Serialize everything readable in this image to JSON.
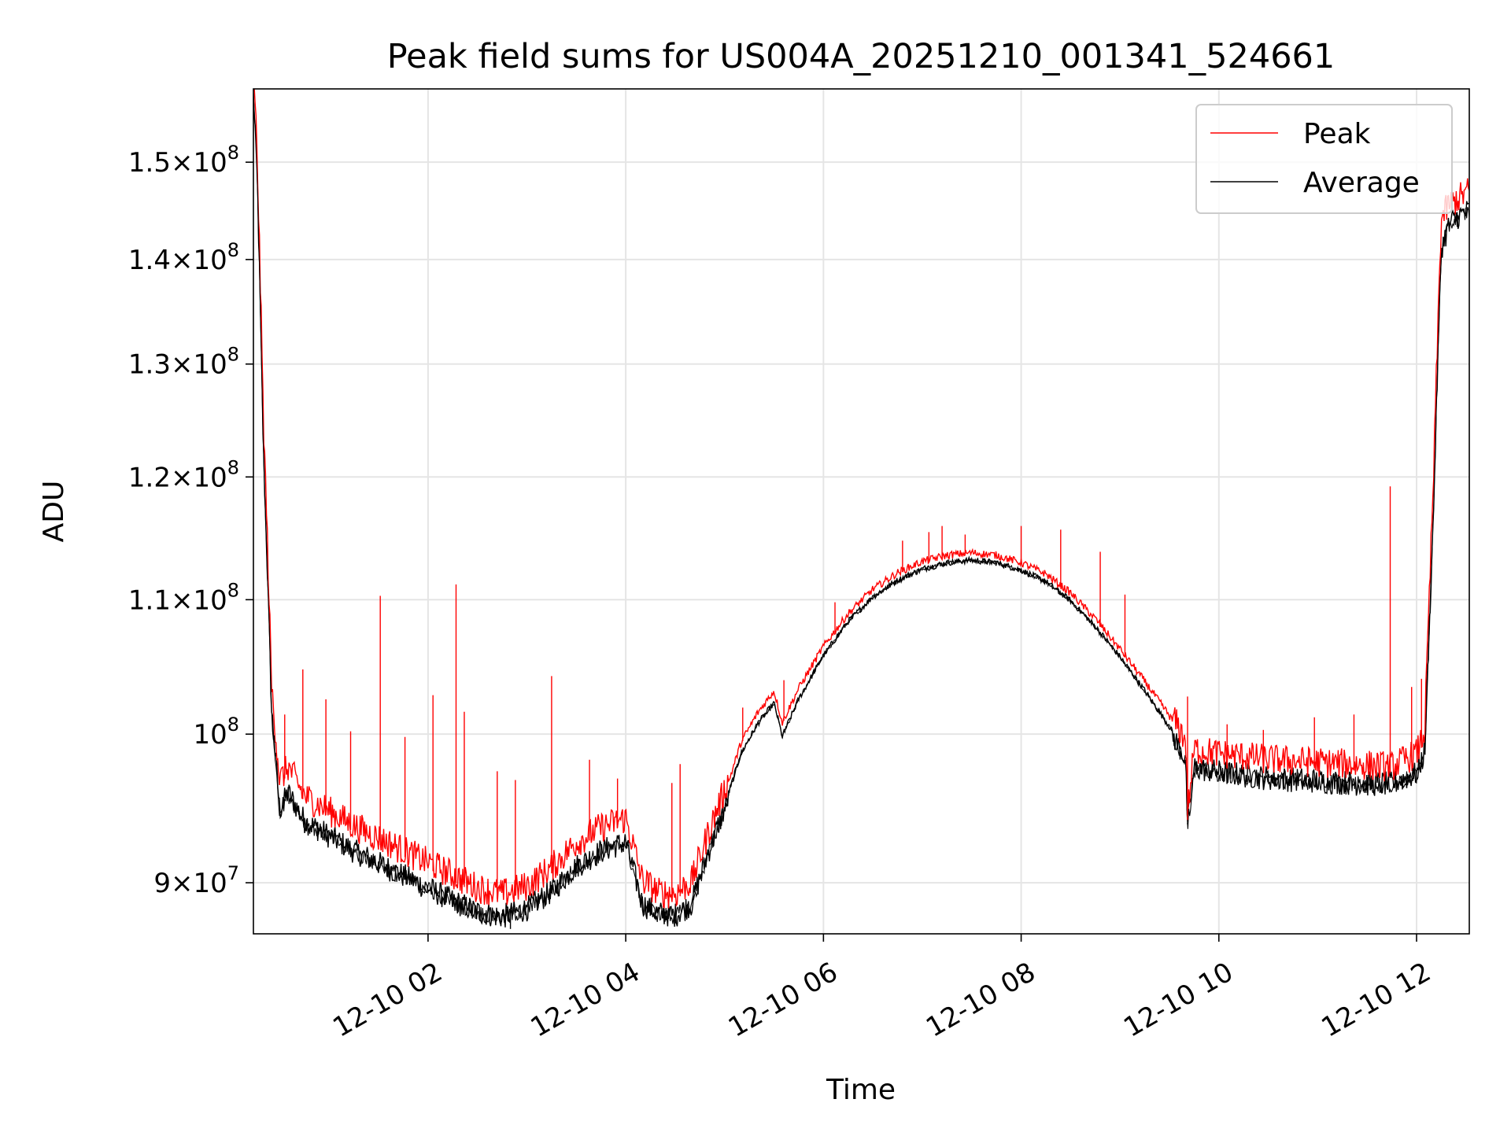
{
  "chart_data": {
    "type": "line",
    "title": "Peak field sums for US004A_20251210_001341_524661",
    "xlabel": "Time",
    "ylabel": "ADU",
    "y_scale": "log",
    "ylim": [
      86800000,
      158000000
    ],
    "xlim": [
      "2025-12-10 00:14",
      "2025-12-10 12:32"
    ],
    "grid": true,
    "legend_position": "top-right",
    "x_ticks": [
      {
        "t": "2025-12-10 02:00",
        "label": "12-10 02"
      },
      {
        "t": "2025-12-10 04:00",
        "label": "12-10 04"
      },
      {
        "t": "2025-12-10 06:00",
        "label": "12-10 06"
      },
      {
        "t": "2025-12-10 08:00",
        "label": "12-10 08"
      },
      {
        "t": "2025-12-10 10:00",
        "label": "12-10 10"
      },
      {
        "t": "2025-12-10 12:00",
        "label": "12-10 12"
      }
    ],
    "y_ticks": [
      {
        "value": 90000000,
        "label_mantissa": "9",
        "label_exp": "7"
      },
      {
        "value": 100000000,
        "label_mantissa": "",
        "label_exp": "8"
      },
      {
        "value": 110000000,
        "label_mantissa": "1.1",
        "label_exp": "8"
      },
      {
        "value": 120000000,
        "label_mantissa": "1.2",
        "label_exp": "8"
      },
      {
        "value": 130000000,
        "label_mantissa": "1.3",
        "label_exp": "8"
      },
      {
        "value": 140000000,
        "label_mantissa": "1.4",
        "label_exp": "8"
      },
      {
        "value": 150000000,
        "label_mantissa": "1.5",
        "label_exp": "8"
      }
    ],
    "series": [
      {
        "name": "Peak",
        "color": "#ff0000",
        "x": [
          "2025-12-10 00:14",
          "2025-12-10 00:16",
          "2025-12-10 00:20",
          "2025-12-10 00:25",
          "2025-12-10 00:30",
          "2025-12-10 00:35",
          "2025-12-10 00:45",
          "2025-12-10 01:00",
          "2025-12-10 01:15",
          "2025-12-10 01:30",
          "2025-12-10 01:45",
          "2025-12-10 02:00",
          "2025-12-10 02:15",
          "2025-12-10 02:30",
          "2025-12-10 02:45",
          "2025-12-10 03:00",
          "2025-12-10 03:15",
          "2025-12-10 03:30",
          "2025-12-10 03:45",
          "2025-12-10 04:00",
          "2025-12-10 04:10",
          "2025-12-10 04:20",
          "2025-12-10 04:30",
          "2025-12-10 04:40",
          "2025-12-10 04:50",
          "2025-12-10 05:00",
          "2025-12-10 05:10",
          "2025-12-10 05:20",
          "2025-12-10 05:30",
          "2025-12-10 05:35",
          "2025-12-10 05:45",
          "2025-12-10 06:00",
          "2025-12-10 06:15",
          "2025-12-10 06:30",
          "2025-12-10 06:45",
          "2025-12-10 07:00",
          "2025-12-10 07:15",
          "2025-12-10 07:30",
          "2025-12-10 07:45",
          "2025-12-10 08:00",
          "2025-12-10 08:15",
          "2025-12-10 08:30",
          "2025-12-10 08:45",
          "2025-12-10 09:00",
          "2025-12-10 09:15",
          "2025-12-10 09:30",
          "2025-12-10 09:40",
          "2025-12-10 09:41",
          "2025-12-10 09:45",
          "2025-12-10 10:00",
          "2025-12-10 10:15",
          "2025-12-10 10:30",
          "2025-12-10 10:45",
          "2025-12-10 11:00",
          "2025-12-10 11:15",
          "2025-12-10 11:30",
          "2025-12-10 11:45",
          "2025-12-10 12:00",
          "2025-12-10 12:05",
          "2025-12-10 12:10",
          "2025-12-10 12:15",
          "2025-12-10 12:20",
          "2025-12-10 12:25",
          "2025-12-10 12:32"
        ],
        "y": [
          158000000,
          152000000,
          125000000,
          103000000,
          96300000,
          97300000,
          95300000,
          94300000,
          93300000,
          92500000,
          91700000,
          90900000,
          90100000,
          89300000,
          88900000,
          89400000,
          90600000,
          92200000,
          93200000,
          93800000,
          89800000,
          89000000,
          88900000,
          89700000,
          92800000,
          95700000,
          99300000,
          101400000,
          103000000,
          100700000,
          103200000,
          106300000,
          108800000,
          110700000,
          112000000,
          112900000,
          113400000,
          113600000,
          113400000,
          112800000,
          111900000,
          110400000,
          108400000,
          106100000,
          103700000,
          101200000,
          99100000,
          94100000,
          98500000,
          98200000,
          98000000,
          97800000,
          97700000,
          97600000,
          97500000,
          97400000,
          97300000,
          98200000,
          99800000,
          118000000,
          143500000,
          145000000,
          145500000,
          146400000
        ]
      },
      {
        "name": "Average",
        "color": "#000000",
        "x": [
          "2025-12-10 00:14",
          "2025-12-10 00:16",
          "2025-12-10 00:20",
          "2025-12-10 00:25",
          "2025-12-10 00:30",
          "2025-12-10 00:35",
          "2025-12-10 00:45",
          "2025-12-10 01:00",
          "2025-12-10 01:15",
          "2025-12-10 01:30",
          "2025-12-10 01:45",
          "2025-12-10 02:00",
          "2025-12-10 02:15",
          "2025-12-10 02:30",
          "2025-12-10 02:45",
          "2025-12-10 03:00",
          "2025-12-10 03:15",
          "2025-12-10 03:30",
          "2025-12-10 03:45",
          "2025-12-10 04:00",
          "2025-12-10 04:10",
          "2025-12-10 04:20",
          "2025-12-10 04:30",
          "2025-12-10 04:40",
          "2025-12-10 04:50",
          "2025-12-10 05:00",
          "2025-12-10 05:10",
          "2025-12-10 05:20",
          "2025-12-10 05:30",
          "2025-12-10 05:35",
          "2025-12-10 05:45",
          "2025-12-10 06:00",
          "2025-12-10 06:15",
          "2025-12-10 06:30",
          "2025-12-10 06:45",
          "2025-12-10 07:00",
          "2025-12-10 07:15",
          "2025-12-10 07:30",
          "2025-12-10 07:45",
          "2025-12-10 08:00",
          "2025-12-10 08:15",
          "2025-12-10 08:30",
          "2025-12-10 08:45",
          "2025-12-10 09:00",
          "2025-12-10 09:15",
          "2025-12-10 09:30",
          "2025-12-10 09:40",
          "2025-12-10 09:41",
          "2025-12-10 09:45",
          "2025-12-10 10:00",
          "2025-12-10 10:15",
          "2025-12-10 10:30",
          "2025-12-10 10:45",
          "2025-12-10 11:00",
          "2025-12-10 11:15",
          "2025-12-10 11:30",
          "2025-12-10 11:45",
          "2025-12-10 12:00",
          "2025-12-10 12:05",
          "2025-12-10 12:10",
          "2025-12-10 12:15",
          "2025-12-10 12:20",
          "2025-12-10 12:25",
          "2025-12-10 12:32"
        ],
        "y": [
          157500000,
          151000000,
          123000000,
          102000000,
          95000000,
          96200000,
          94300000,
          93300000,
          92300000,
          91500000,
          90700000,
          89900000,
          89100000,
          88400000,
          88100000,
          88600000,
          89700000,
          91300000,
          92300000,
          92900000,
          88900000,
          88300000,
          88200000,
          88900000,
          92200000,
          95100000,
          98700000,
          100800000,
          102300000,
          99900000,
          102600000,
          105800000,
          108400000,
          110300000,
          111600000,
          112500000,
          113000000,
          113200000,
          113000000,
          112400000,
          111500000,
          110000000,
          108000000,
          105700000,
          103200000,
          100600000,
          98500000,
          93900000,
          97900000,
          97600000,
          97400000,
          97200000,
          97100000,
          97000000,
          96900000,
          96800000,
          96800000,
          97500000,
          99000000,
          116000000,
          141500000,
          144000000,
          144700000,
          145400000
        ]
      }
    ],
    "peak_spikes": [
      {
        "t": "2025-12-10 00:33",
        "y": 101400000
      },
      {
        "t": "2025-12-10 00:44",
        "y": 104700000
      },
      {
        "t": "2025-12-10 00:58",
        "y": 102500000
      },
      {
        "t": "2025-12-10 01:13",
        "y": 100200000
      },
      {
        "t": "2025-12-10 01:31",
        "y": 110300000
      },
      {
        "t": "2025-12-10 01:46",
        "y": 99800000
      },
      {
        "t": "2025-12-10 02:03",
        "y": 102800000
      },
      {
        "t": "2025-12-10 02:17",
        "y": 111200000
      },
      {
        "t": "2025-12-10 02:22",
        "y": 101600000
      },
      {
        "t": "2025-12-10 02:42",
        "y": 97400000
      },
      {
        "t": "2025-12-10 02:53",
        "y": 96800000
      },
      {
        "t": "2025-12-10 03:15",
        "y": 104200000
      },
      {
        "t": "2025-12-10 03:38",
        "y": 98200000
      },
      {
        "t": "2025-12-10 03:55",
        "y": 96900000
      },
      {
        "t": "2025-12-10 04:28",
        "y": 96600000
      },
      {
        "t": "2025-12-10 04:33",
        "y": 97900000
      },
      {
        "t": "2025-12-10 05:11",
        "y": 101900000
      },
      {
        "t": "2025-12-10 05:36",
        "y": 103900000
      },
      {
        "t": "2025-12-10 06:07",
        "y": 109800000
      },
      {
        "t": "2025-12-10 06:48",
        "y": 114700000
      },
      {
        "t": "2025-12-10 07:04",
        "y": 115400000
      },
      {
        "t": "2025-12-10 07:12",
        "y": 115900000
      },
      {
        "t": "2025-12-10 07:26",
        "y": 115200000
      },
      {
        "t": "2025-12-10 08:00",
        "y": 115900000
      },
      {
        "t": "2025-12-10 08:24",
        "y": 115600000
      },
      {
        "t": "2025-12-10 08:48",
        "y": 113800000
      },
      {
        "t": "2025-12-10 09:03",
        "y": 110400000
      },
      {
        "t": "2025-12-10 09:41",
        "y": 102700000
      },
      {
        "t": "2025-12-10 10:05",
        "y": 100700000
      },
      {
        "t": "2025-12-10 10:27",
        "y": 100300000
      },
      {
        "t": "2025-12-10 10:58",
        "y": 101200000
      },
      {
        "t": "2025-12-10 11:22",
        "y": 101400000
      },
      {
        "t": "2025-12-10 11:44",
        "y": 119200000
      },
      {
        "t": "2025-12-10 11:57",
        "y": 103400000
      },
      {
        "t": "2025-12-10 12:03",
        "y": 104000000
      }
    ],
    "avg_dips": [
      {
        "t": "2025-12-10 02:50",
        "y": 87100000
      },
      {
        "t": "2025-12-10 04:25",
        "y": 87900000
      },
      {
        "t": "2025-12-10 09:41",
        "y": 93800000
      }
    ]
  }
}
